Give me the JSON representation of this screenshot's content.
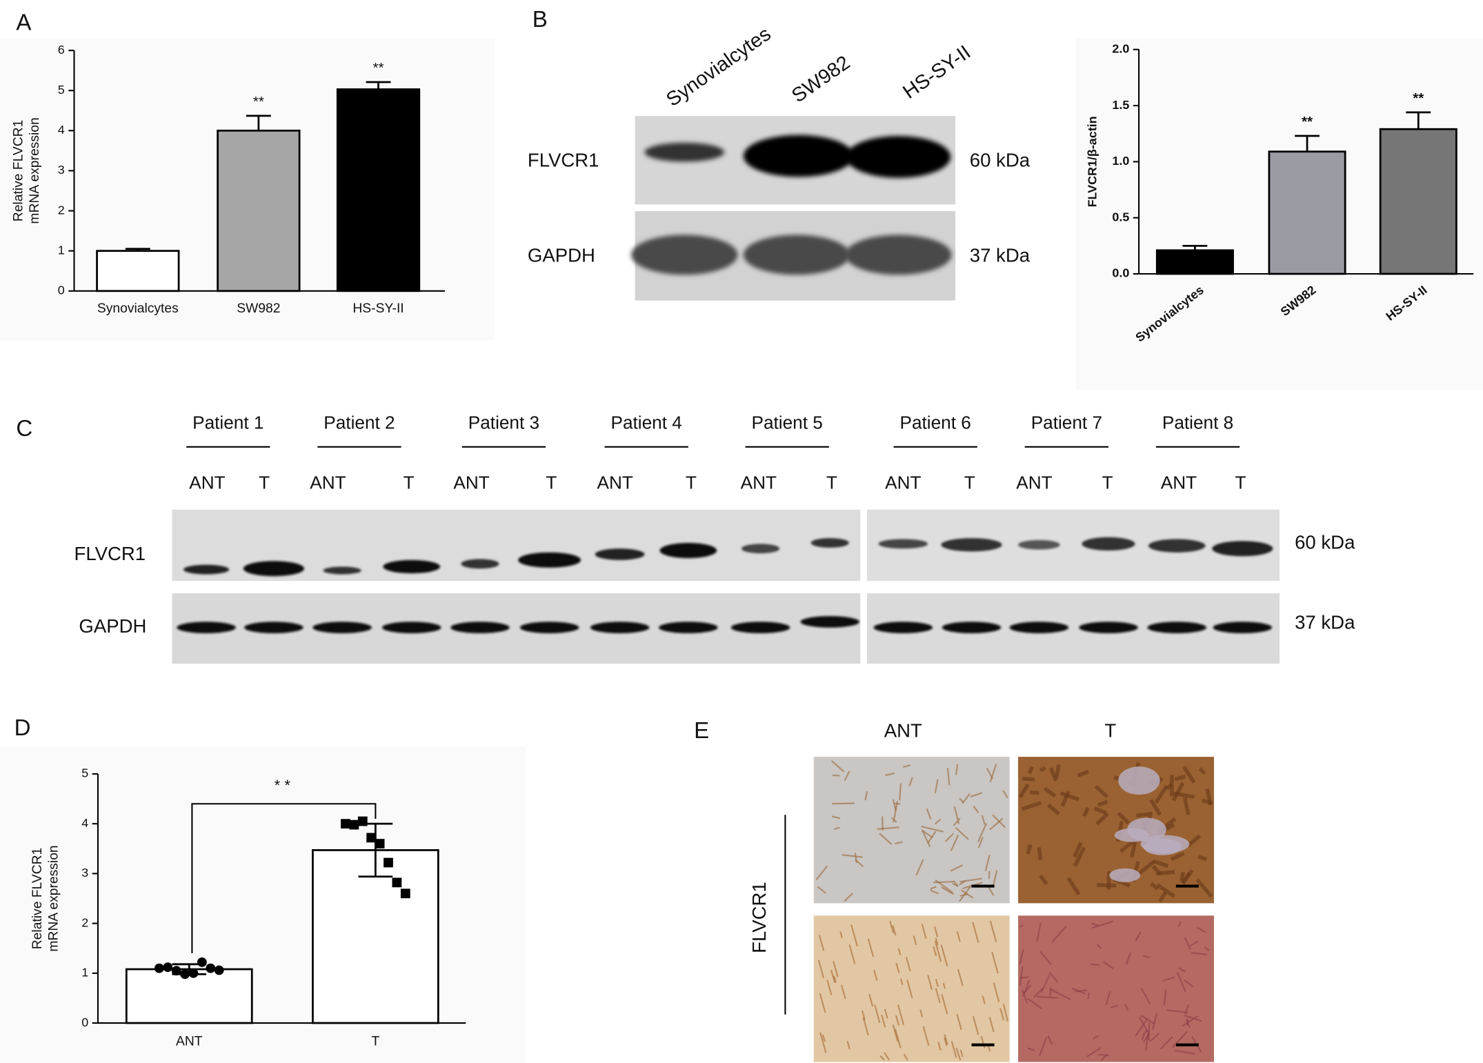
{
  "panel_labels": [
    "A",
    "B",
    "C",
    "D",
    "E"
  ],
  "chart_data": [
    {
      "type": "bar",
      "ylabel": [
        "Relative FLVCR1",
        "mRNA expression"
      ],
      "categories": [
        "Synovialcytes",
        "SW982",
        "HS-SY-II"
      ],
      "values": [
        1.0,
        4.0,
        5.03
      ],
      "errors": [
        0.05,
        0.37,
        0.18
      ],
      "annotations": [
        null,
        "**",
        "**"
      ],
      "colors": [
        "#ffffff",
        "#a6a6a6",
        "#000000"
      ],
      "ylim": [
        0,
        6
      ],
      "yticks": [
        0,
        1,
        2,
        3,
        4,
        5,
        6
      ]
    },
    {
      "type": "bar",
      "ylabel": "FLVCR1/β-actin",
      "categories": [
        "Synovialcytes",
        "SW982",
        "HS-SY-II"
      ],
      "values": [
        0.21,
        1.09,
        1.29
      ],
      "errors": [
        0.04,
        0.14,
        0.15
      ],
      "annotations": [
        null,
        "**",
        "**"
      ],
      "colors": [
        "#000000",
        "#9b9ba3",
        "#767676"
      ],
      "ylim": [
        0,
        2
      ],
      "yticks": [
        {
          "value": 0,
          "label": "0.0"
        },
        0.5,
        {
          "value": 1,
          "label": "1.0"
        },
        1.5,
        {
          "value": 2,
          "label": "2.0"
        }
      ]
    },
    {
      "type": "bar",
      "ylabel": [
        "Relative FLVCR1",
        "mRNA expression"
      ],
      "categories": [
        "ANT",
        "T"
      ],
      "values": [
        1.08,
        3.47
      ],
      "errors": [
        0.1,
        0.53
      ],
      "points": [
        [
          1.1,
          1.12,
          1.05,
          0.98,
          1.0,
          1.22,
          1.1,
          1.06
        ],
        [
          4.0,
          3.98,
          4.05,
          3.72,
          3.6,
          3.22,
          2.82,
          2.6
        ]
      ],
      "significance": "* *",
      "colors": [
        "#ffffff",
        "#ffffff"
      ],
      "ylim": [
        0,
        5
      ],
      "yticks": [
        0,
        1,
        2,
        3,
        4,
        5
      ]
    }
  ],
  "blot_b": {
    "lanes": [
      "Synovialcytes",
      "SW982",
      "HS-SY-II"
    ],
    "rows": [
      "FLVCR1",
      "GAPDH"
    ],
    "sizes": [
      "60 kDa",
      "37 kDa"
    ]
  },
  "blot_c": {
    "patients": [
      "Patient 1",
      "Patient 2",
      "Patient 3",
      "Patient 4",
      "Patient 5",
      "Patient 6",
      "Patient 7",
      "Patient 8"
    ],
    "lanes": [
      "ANT",
      "T",
      "ANT",
      "T",
      "ANT",
      "T",
      "ANT",
      "T",
      "ANT",
      "T",
      "ANT",
      "T",
      "ANT",
      "T",
      "ANT",
      "T"
    ],
    "rows": [
      "FLVCR1",
      "GAPDH"
    ],
    "sizes": [
      "60 kDa",
      "37 kDa"
    ]
  },
  "ihc": {
    "columns": [
      "ANT",
      "T"
    ],
    "row": "FLVCR1"
  }
}
